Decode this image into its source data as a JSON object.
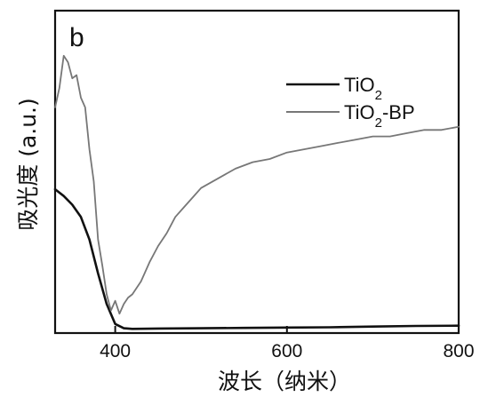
{
  "chart_data": {
    "type": "line",
    "panel_label": "b",
    "xlabel": "波长（纳米）",
    "ylabel": "吸光度 (a.u.)",
    "xlim": [
      330,
      800
    ],
    "ylim": [
      0,
      1
    ],
    "xticks": [
      400,
      600,
      800
    ],
    "x_tick_labels": [
      "400",
      "600",
      "800"
    ],
    "grid": false,
    "legend_position": "top-right",
    "series": [
      {
        "name": "TiO2",
        "legend": {
          "prefix": "TiO",
          "sub": "2",
          "suffix": ""
        },
        "color": "#111111",
        "x": [
          330,
          340,
          350,
          360,
          370,
          380,
          390,
          400,
          410,
          420,
          450,
          500,
          550,
          600,
          650,
          700,
          750,
          800
        ],
        "y": [
          0.446,
          0.425,
          0.398,
          0.36,
          0.29,
          0.185,
          0.09,
          0.028,
          0.015,
          0.013,
          0.014,
          0.015,
          0.016,
          0.017,
          0.018,
          0.02,
          0.022,
          0.023
        ]
      },
      {
        "name": "TiO2-BP",
        "legend": {
          "prefix": "TiO",
          "sub": "2",
          "suffix": "-BP"
        },
        "color": "#777777",
        "x": [
          330,
          335,
          340,
          345,
          350,
          355,
          360,
          365,
          370,
          375,
          380,
          385,
          390,
          395,
          400,
          405,
          410,
          415,
          420,
          430,
          440,
          450,
          460,
          470,
          480,
          490,
          500,
          520,
          540,
          560,
          580,
          600,
          620,
          640,
          660,
          680,
          700,
          720,
          740,
          760,
          780,
          800
        ],
        "y": [
          0.7,
          0.76,
          0.86,
          0.84,
          0.79,
          0.8,
          0.73,
          0.7,
          0.57,
          0.47,
          0.29,
          0.21,
          0.12,
          0.07,
          0.1,
          0.06,
          0.09,
          0.11,
          0.12,
          0.16,
          0.22,
          0.27,
          0.31,
          0.36,
          0.39,
          0.42,
          0.45,
          0.48,
          0.51,
          0.53,
          0.54,
          0.56,
          0.57,
          0.58,
          0.59,
          0.6,
          0.61,
          0.61,
          0.62,
          0.63,
          0.63,
          0.64
        ]
      }
    ]
  }
}
